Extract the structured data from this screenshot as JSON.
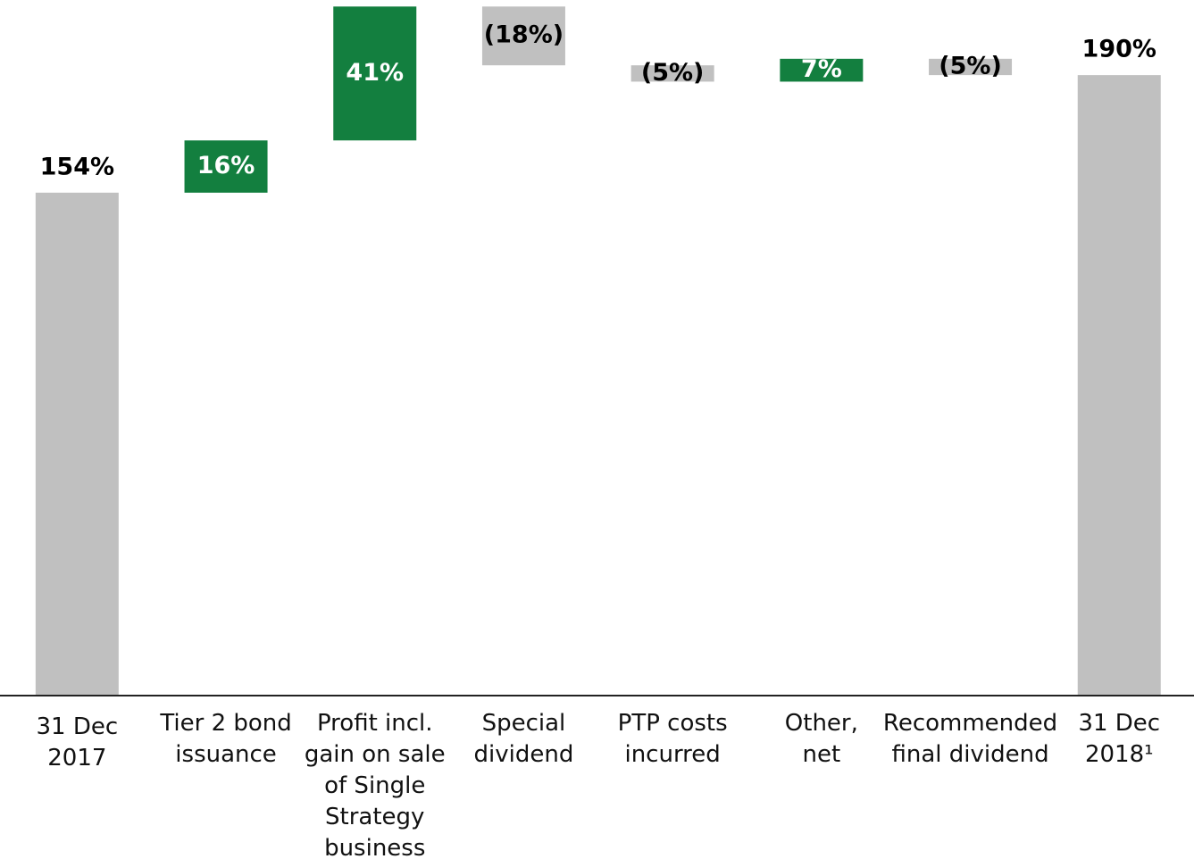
{
  "chart_data": {
    "type": "waterfall",
    "categories": [
      "31 Dec 2017",
      "Tier 2 bond issuance",
      "Profit incl. gain on sale of Single Strategy business",
      "Special dividend",
      "PTP costs incurred",
      "Other, net",
      "Recommended final dividend",
      "31 Dec 2018¹"
    ],
    "values": [
      154,
      16,
      41,
      -18,
      -5,
      7,
      -5,
      190
    ],
    "value_labels": [
      "154%",
      "16%",
      "41%",
      "(18%)",
      "(5%)",
      "7%",
      "(5%)",
      "190%"
    ],
    "colors": [
      "#c0c0c0",
      "#137f3f",
      "#137f3f",
      "#c0c0c0",
      "#c0c0c0",
      "#137f3f",
      "#c0c0c0",
      "#c0c0c0"
    ],
    "ylim": [
      0,
      213
    ]
  }
}
